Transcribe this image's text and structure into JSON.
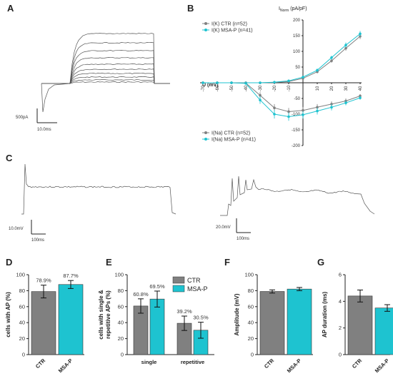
{
  "colors": {
    "ctr": "#808080",
    "msa": "#1ec3d0",
    "trace": "#555555"
  },
  "panels": {
    "A": {
      "label": "A",
      "scale_current": "500pA",
      "scale_time": "10.0ms"
    },
    "B": {
      "label": "B",
      "ylabel": "I",
      "ylabel_sub": "Norm",
      "ylabel_unit": "(pA/pF)",
      "xlabel": "U (mV)"
    },
    "C": {
      "label": "C",
      "left_scale_v": "10.0mV",
      "left_scale_t": "100ms",
      "right_scale_v": "20.0mV",
      "right_scale_t": "100ms"
    },
    "D": {
      "label": "D"
    },
    "E": {
      "label": "E"
    },
    "F": {
      "label": "F"
    },
    "G": {
      "label": "G"
    }
  },
  "chart_data": [
    {
      "id": "B",
      "type": "line",
      "xlabel": "U (mV)",
      "ylabel": "INorm (pA/pF)",
      "x": [
        -70,
        -60,
        -50,
        -40,
        -30,
        -20,
        -10,
        0,
        10,
        20,
        30,
        40
      ],
      "xticks": [
        "-70",
        "-60",
        "-50",
        "-40",
        "-30",
        "-20",
        "-10",
        "0",
        "10",
        "20",
        "30",
        "40"
      ],
      "ylim": [
        -200,
        200
      ],
      "yticks": [
        -200,
        -150,
        -100,
        -50,
        50,
        100,
        150,
        200
      ],
      "series": [
        {
          "name": "I(K) CTR (n=52)",
          "color": "#808080",
          "values": [
            0,
            0,
            0,
            0,
            0,
            1,
            4,
            14,
            35,
            70,
            110,
            148
          ],
          "err": [
            0,
            0,
            0,
            0,
            0,
            1,
            2,
            3,
            5,
            6,
            8,
            9
          ]
        },
        {
          "name": "I(K) MSA-P (n=41)",
          "color": "#1ec3d0",
          "values": [
            0,
            0,
            0,
            0,
            0,
            2,
            6,
            18,
            40,
            80,
            120,
            156
          ],
          "err": [
            0,
            0,
            0,
            0,
            0,
            1,
            2,
            3,
            5,
            6,
            8,
            9
          ]
        },
        {
          "name": "I(Na) CTR (n=52)",
          "color": "#808080",
          "values": [
            0,
            0,
            0,
            -1,
            -40,
            -80,
            -92,
            -88,
            -78,
            -68,
            -58,
            -42
          ],
          "err": [
            0,
            0,
            0,
            1,
            10,
            12,
            12,
            11,
            10,
            9,
            8,
            6
          ]
        },
        {
          "name": "I(Na) MSA-P (n=41)",
          "color": "#1ec3d0",
          "values": [
            0,
            0,
            0,
            -2,
            -55,
            -100,
            -108,
            -102,
            -90,
            -78,
            -64,
            -48
          ],
          "err": [
            0,
            0,
            0,
            1,
            12,
            14,
            13,
            12,
            11,
            10,
            8,
            6
          ]
        }
      ]
    },
    {
      "id": "D",
      "type": "bar",
      "categories": [
        "CTR",
        "MSA-P"
      ],
      "values": [
        78.9,
        87.7
      ],
      "errors": [
        8,
        5
      ],
      "labels": [
        "78.9%",
        "87.7%"
      ],
      "colors": [
        "#808080",
        "#1ec3d0"
      ],
      "ylabel": "cells with AP (%)",
      "ylim": [
        0,
        100
      ],
      "yticks": [
        0,
        20,
        40,
        60,
        80,
        100
      ]
    },
    {
      "id": "E",
      "type": "bar",
      "categories": [
        "single",
        "repetitive"
      ],
      "series": [
        {
          "name": "CTR",
          "color": "#808080",
          "values": [
            60.8,
            39.2
          ],
          "errors": [
            9,
            9
          ],
          "labels": [
            "60.8%",
            "39.2%"
          ]
        },
        {
          "name": "MSA-P",
          "color": "#1ec3d0",
          "values": [
            69.5,
            30.5
          ],
          "errors": [
            10,
            10
          ],
          "labels": [
            "69.5%",
            "30.5%"
          ]
        }
      ],
      "ylabel": "cells with single & repetitive APs (%)",
      "ylabel_lines": [
        "cells with single &",
        "repetitive APs (%)"
      ],
      "ylim": [
        0,
        100
      ],
      "yticks": [
        0,
        20,
        40,
        60,
        80,
        100
      ],
      "legend": "top-right"
    },
    {
      "id": "F",
      "type": "bar",
      "categories": [
        "CTR",
        "MSA-P"
      ],
      "values": [
        79,
        82
      ],
      "errors": [
        2,
        2
      ],
      "colors": [
        "#808080",
        "#1ec3d0"
      ],
      "ylabel": "Amplitude (mV)",
      "ylim": [
        0,
        100
      ],
      "yticks": [
        0,
        20,
        40,
        60,
        80,
        100
      ]
    },
    {
      "id": "G",
      "type": "bar",
      "categories": [
        "CTR",
        "MSA-P"
      ],
      "values": [
        4.4,
        3.5
      ],
      "errors": [
        0.45,
        0.25
      ],
      "colors": [
        "#808080",
        "#1ec3d0"
      ],
      "ylabel": "AP duration (ms)",
      "ylim": [
        0,
        6
      ],
      "yticks": [
        0,
        2,
        4,
        6
      ]
    }
  ]
}
